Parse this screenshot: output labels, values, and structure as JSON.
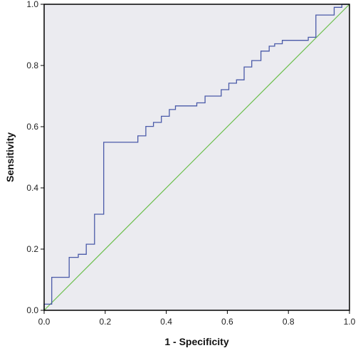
{
  "chart_data": {
    "type": "line",
    "xlabel": "1 - Specificity",
    "ylabel": "Sensitivity",
    "xlim": [
      0.0,
      1.0
    ],
    "ylim": [
      0.0,
      1.0
    ],
    "x_ticks": [
      0.0,
      0.2,
      0.4,
      0.6,
      0.8,
      1.0
    ],
    "y_ticks": [
      0.0,
      0.2,
      0.4,
      0.6,
      0.8,
      1.0
    ],
    "x_tick_labels": [
      "0.0",
      "0.2",
      "0.4",
      "0.6",
      "0.8",
      "1.0"
    ],
    "y_tick_labels": [
      "0.0",
      "0.2",
      "0.4",
      "0.6",
      "0.8",
      "1.0"
    ],
    "grid": false,
    "background_color": "#ebebf0",
    "series": [
      {
        "style": "step",
        "color": "#4a5aa8",
        "points": [
          [
            0.0,
            0.0
          ],
          [
            0.0,
            0.02
          ],
          [
            0.025,
            0.02
          ],
          [
            0.025,
            0.108
          ],
          [
            0.082,
            0.108
          ],
          [
            0.082,
            0.173
          ],
          [
            0.112,
            0.173
          ],
          [
            0.112,
            0.183
          ],
          [
            0.138,
            0.183
          ],
          [
            0.138,
            0.216
          ],
          [
            0.165,
            0.216
          ],
          [
            0.165,
            0.314
          ],
          [
            0.195,
            0.314
          ],
          [
            0.195,
            0.549
          ],
          [
            0.307,
            0.549
          ],
          [
            0.307,
            0.57
          ],
          [
            0.333,
            0.57
          ],
          [
            0.333,
            0.601
          ],
          [
            0.358,
            0.601
          ],
          [
            0.358,
            0.614
          ],
          [
            0.384,
            0.614
          ],
          [
            0.384,
            0.634
          ],
          [
            0.41,
            0.634
          ],
          [
            0.41,
            0.656
          ],
          [
            0.43,
            0.656
          ],
          [
            0.43,
            0.668
          ],
          [
            0.5,
            0.668
          ],
          [
            0.5,
            0.678
          ],
          [
            0.527,
            0.678
          ],
          [
            0.527,
            0.7
          ],
          [
            0.58,
            0.7
          ],
          [
            0.58,
            0.721
          ],
          [
            0.605,
            0.721
          ],
          [
            0.605,
            0.742
          ],
          [
            0.63,
            0.742
          ],
          [
            0.63,
            0.753
          ],
          [
            0.655,
            0.753
          ],
          [
            0.655,
            0.795
          ],
          [
            0.68,
            0.795
          ],
          [
            0.68,
            0.816
          ],
          [
            0.71,
            0.816
          ],
          [
            0.71,
            0.847
          ],
          [
            0.737,
            0.847
          ],
          [
            0.737,
            0.863
          ],
          [
            0.755,
            0.863
          ],
          [
            0.755,
            0.871
          ],
          [
            0.78,
            0.871
          ],
          [
            0.78,
            0.882
          ],
          [
            0.865,
            0.882
          ],
          [
            0.865,
            0.892
          ],
          [
            0.89,
            0.892
          ],
          [
            0.89,
            0.965
          ],
          [
            0.95,
            0.965
          ],
          [
            0.95,
            0.99
          ],
          [
            0.975,
            0.99
          ],
          [
            0.975,
            1.0
          ],
          [
            1.0,
            1.0
          ]
        ]
      },
      {
        "style": "reference",
        "color": "#6abf4b",
        "points": [
          [
            0.0,
            0.0
          ],
          [
            1.0,
            1.0
          ]
        ]
      }
    ]
  }
}
